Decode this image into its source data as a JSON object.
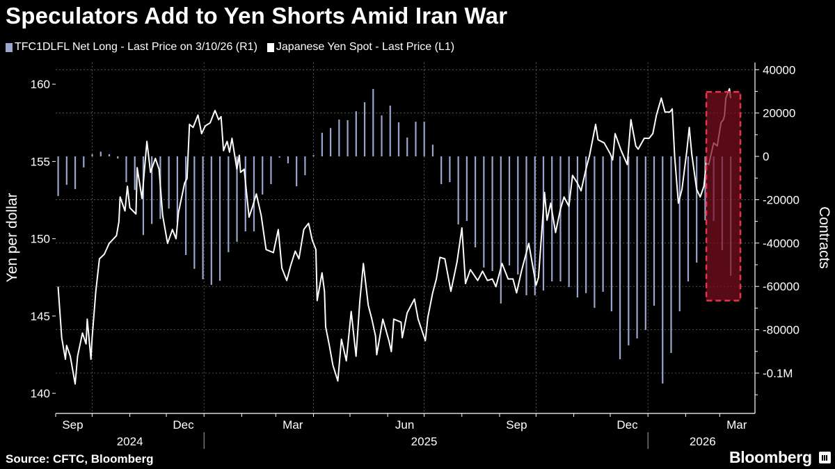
{
  "title": "Speculators Add to Yen Shorts Amid Iran War",
  "source": "Source: CFTC, Bloomberg",
  "logo": "Bloomberg",
  "colors": {
    "background": "#000000",
    "bars": "#9aa6cc",
    "line": "#ffffff",
    "highlight_fill": "#7a0f1e",
    "highlight_border": "#e8334a",
    "grid": "#666666"
  },
  "chart_data": {
    "type": "bar+line",
    "title": "Speculators Add to Yen Shorts Amid Iran War",
    "legend_position": "top-left",
    "grid": true,
    "xlim": [
      "2024-09-01",
      "2026-03-30"
    ],
    "x_tick_labels": [
      {
        "date": "2024-09-15",
        "label": "Sep"
      },
      {
        "date": "2024-12-15",
        "label": "Dec"
      },
      {
        "date": "2025-03-15",
        "label": "Mar"
      },
      {
        "date": "2025-06-15",
        "label": "Jun"
      },
      {
        "date": "2025-09-15",
        "label": "Sep"
      },
      {
        "date": "2025-12-15",
        "label": "Dec"
      },
      {
        "date": "2026-03-15",
        "label": "Mar"
      }
    ],
    "x_year_labels": [
      {
        "date": "2024-11-01",
        "label": "2024"
      },
      {
        "date": "2025-07-01",
        "label": "2025"
      },
      {
        "date": "2026-02-15",
        "label": "2026"
      }
    ],
    "y_left": {
      "label": "Yen per dollar",
      "ylim": [
        138.7,
        161.4
      ],
      "ticks": [
        160,
        155,
        150,
        145,
        140
      ],
      "tick_labels": [
        "160",
        "155",
        "150",
        "145",
        "140"
      ]
    },
    "y_right": {
      "label": "Contracts",
      "ylim": [
        -118600,
        43300
      ],
      "ticks": [
        40000,
        20000,
        0,
        -20000,
        -40000,
        -60000,
        -80000,
        -100000
      ],
      "tick_labels": [
        "40000",
        "20000",
        "0",
        "-20000",
        "-40000",
        "-60000",
        "-80000",
        "-0.1M"
      ]
    },
    "highlight": {
      "x": [
        "2026-02-18",
        "2026-03-18"
      ],
      "y_left": [
        146.0,
        159.5
      ]
    },
    "series": [
      {
        "name": "TFC1DLFL Net Long - Last Price on 3/10/26 (R1)",
        "type": "bar",
        "axis": "right",
        "dates": [
          "2024-09-03",
          "2024-09-10",
          "2024-09-17",
          "2024-09-24",
          "2024-10-01",
          "2024-10-08",
          "2024-10-15",
          "2024-10-22",
          "2024-10-29",
          "2024-11-05",
          "2024-11-12",
          "2024-11-19",
          "2024-11-26",
          "2024-12-03",
          "2024-12-10",
          "2024-12-17",
          "2024-12-24",
          "2024-12-31",
          "2025-01-07",
          "2025-01-14",
          "2025-01-21",
          "2025-01-28",
          "2025-02-04",
          "2025-02-11",
          "2025-02-18",
          "2025-02-25",
          "2025-03-04",
          "2025-03-11",
          "2025-03-18",
          "2025-03-25",
          "2025-04-01",
          "2025-04-08",
          "2025-04-15",
          "2025-04-22",
          "2025-04-29",
          "2025-05-06",
          "2025-05-13",
          "2025-05-20",
          "2025-05-27",
          "2025-06-03",
          "2025-06-10",
          "2025-06-17",
          "2025-06-24",
          "2025-07-01",
          "2025-07-08",
          "2025-07-15",
          "2025-07-22",
          "2025-07-29",
          "2025-08-05",
          "2025-08-12",
          "2025-08-19",
          "2025-08-26",
          "2025-09-02",
          "2025-09-09",
          "2025-09-16",
          "2025-09-23",
          "2025-09-30",
          "2025-10-07",
          "2025-10-14",
          "2025-10-21",
          "2025-10-28",
          "2025-11-04",
          "2025-11-11",
          "2025-11-18",
          "2025-11-25",
          "2025-12-02",
          "2025-12-09",
          "2025-12-16",
          "2025-12-23",
          "2025-12-30",
          "2026-01-06",
          "2026-01-13",
          "2026-01-20",
          "2026-01-27",
          "2026-02-03",
          "2026-02-10",
          "2026-02-17",
          "2026-02-24",
          "2026-03-03",
          "2026-03-10"
        ],
        "values": [
          -18300,
          -13100,
          -15100,
          -5100,
          1000,
          2200,
          1000,
          -1000,
          -11900,
          -15500,
          -36300,
          -31200,
          -28900,
          -24100,
          -30600,
          -45500,
          -51900,
          -56700,
          -59300,
          -57400,
          -44200,
          -39400,
          -34600,
          -34600,
          -17600,
          -12800,
          -600,
          -3200,
          -13800,
          -8700,
          600,
          10900,
          13100,
          17000,
          16700,
          20800,
          25000,
          31100,
          18900,
          23400,
          15700,
          8700,
          16000,
          16000,
          5400,
          -12800,
          -11900,
          -31400,
          -29800,
          -42000,
          -51300,
          -52900,
          -67900,
          -50300,
          -54500,
          -64100,
          -64100,
          -61900,
          -57700,
          -57700,
          -60300,
          -65100,
          -63100,
          -69900,
          -62500,
          -71500,
          -93600,
          -87200,
          -84000,
          -80100,
          -68900,
          -104800,
          -90700,
          -71500,
          -57700,
          -49000,
          -29500,
          -29800,
          -43300,
          -55100
        ]
      },
      {
        "name": "Japanese Yen Spot - Last Price (L1)",
        "type": "line",
        "axis": "left",
        "points": [
          [
            "2024-09-03",
            146.9
          ],
          [
            "2024-09-06",
            143.6
          ],
          [
            "2024-09-09",
            142.2
          ],
          [
            "2024-09-10",
            143.1
          ],
          [
            "2024-09-13",
            142.4
          ],
          [
            "2024-09-17",
            140.6
          ],
          [
            "2024-09-19",
            142.4
          ],
          [
            "2024-09-23",
            143.9
          ],
          [
            "2024-09-26",
            143.2
          ],
          [
            "2024-09-27",
            144.8
          ],
          [
            "2024-09-30",
            142.2
          ],
          [
            "2024-10-01",
            143.6
          ],
          [
            "2024-10-04",
            146.6
          ],
          [
            "2024-10-07",
            148.7
          ],
          [
            "2024-10-11",
            149.0
          ],
          [
            "2024-10-15",
            149.7
          ],
          [
            "2024-10-21",
            150.2
          ],
          [
            "2024-10-23",
            151.1
          ],
          [
            "2024-10-24",
            152.7
          ],
          [
            "2024-10-28",
            151.8
          ],
          [
            "2024-10-30",
            153.4
          ],
          [
            "2024-11-01",
            152.0
          ],
          [
            "2024-11-06",
            151.6
          ],
          [
            "2024-11-07",
            154.6
          ],
          [
            "2024-11-11",
            152.6
          ],
          [
            "2024-11-15",
            156.3
          ],
          [
            "2024-11-18",
            154.3
          ],
          [
            "2024-11-22",
            155.2
          ],
          [
            "2024-11-25",
            154.5
          ],
          [
            "2024-11-28",
            151.5
          ],
          [
            "2024-12-02",
            149.7
          ],
          [
            "2024-12-06",
            150.6
          ],
          [
            "2024-12-09",
            150.0
          ],
          [
            "2024-12-11",
            151.7
          ],
          [
            "2024-12-16",
            153.6
          ],
          [
            "2024-12-18",
            153.9
          ],
          [
            "2024-12-20",
            157.4
          ],
          [
            "2024-12-23",
            157.2
          ],
          [
            "2024-12-27",
            158.0
          ],
          [
            "2024-12-30",
            156.8
          ],
          [
            "2025-01-02",
            157.3
          ],
          [
            "2025-01-06",
            157.5
          ],
          [
            "2025-01-10",
            158.3
          ],
          [
            "2025-01-13",
            157.7
          ],
          [
            "2025-01-15",
            157.9
          ],
          [
            "2025-01-17",
            155.7
          ],
          [
            "2025-01-20",
            156.3
          ],
          [
            "2025-01-22",
            155.6
          ],
          [
            "2025-01-24",
            156.5
          ],
          [
            "2025-01-28",
            154.5
          ],
          [
            "2025-01-30",
            155.4
          ],
          [
            "2025-01-31",
            154.3
          ],
          [
            "2025-02-03",
            154.5
          ],
          [
            "2025-02-07",
            151.4
          ],
          [
            "2025-02-10",
            152.1
          ],
          [
            "2025-02-13",
            152.9
          ],
          [
            "2025-02-17",
            151.5
          ],
          [
            "2025-02-21",
            149.3
          ],
          [
            "2025-02-27",
            149.1
          ],
          [
            "2025-03-03",
            150.6
          ],
          [
            "2025-03-06",
            148.1
          ],
          [
            "2025-03-10",
            147.3
          ],
          [
            "2025-03-13",
            148.2
          ],
          [
            "2025-03-17",
            149.2
          ],
          [
            "2025-03-20",
            148.7
          ],
          [
            "2025-03-24",
            150.6
          ],
          [
            "2025-03-28",
            151.0
          ],
          [
            "2025-03-31",
            149.9
          ],
          [
            "2025-04-03",
            149.3
          ],
          [
            "2025-04-04",
            146.0
          ],
          [
            "2025-04-08",
            147.8
          ],
          [
            "2025-04-10",
            146.6
          ],
          [
            "2025-04-11",
            144.3
          ],
          [
            "2025-04-14",
            143.1
          ],
          [
            "2025-04-17",
            141.8
          ],
          [
            "2025-04-21",
            140.8
          ],
          [
            "2025-04-24",
            143.5
          ],
          [
            "2025-04-28",
            142.1
          ],
          [
            "2025-05-02",
            145.3
          ],
          [
            "2025-05-06",
            142.4
          ],
          [
            "2025-05-09",
            145.9
          ],
          [
            "2025-05-12",
            148.4
          ],
          [
            "2025-05-16",
            145.7
          ],
          [
            "2025-05-19",
            144.8
          ],
          [
            "2025-05-22",
            143.7
          ],
          [
            "2025-05-23",
            142.5
          ],
          [
            "2025-05-28",
            144.8
          ],
          [
            "2025-06-02",
            143.4
          ],
          [
            "2025-06-04",
            142.7
          ],
          [
            "2025-06-06",
            144.8
          ],
          [
            "2025-06-12",
            144.6
          ],
          [
            "2025-06-13",
            143.6
          ],
          [
            "2025-06-17",
            145.2
          ],
          [
            "2025-06-23",
            146.1
          ],
          [
            "2025-06-26",
            144.8
          ],
          [
            "2025-07-02",
            143.4
          ],
          [
            "2025-07-04",
            144.9
          ],
          [
            "2025-07-08",
            146.5
          ],
          [
            "2025-07-11",
            147.4
          ],
          [
            "2025-07-14",
            148.8
          ],
          [
            "2025-07-18",
            148.7
          ],
          [
            "2025-07-23",
            146.6
          ],
          [
            "2025-07-28",
            148.5
          ],
          [
            "2025-08-01",
            150.7
          ],
          [
            "2025-08-04",
            147.1
          ],
          [
            "2025-08-08",
            148.0
          ],
          [
            "2025-08-14",
            147.3
          ],
          [
            "2025-08-18",
            147.9
          ],
          [
            "2025-08-22",
            147.3
          ],
          [
            "2025-08-26",
            147.4
          ],
          [
            "2025-08-29",
            146.9
          ],
          [
            "2025-09-03",
            148.4
          ],
          [
            "2025-09-08",
            147.4
          ],
          [
            "2025-09-12",
            147.4
          ],
          [
            "2025-09-15",
            146.5
          ],
          [
            "2025-09-19",
            147.9
          ],
          [
            "2025-09-25",
            149.7
          ],
          [
            "2025-10-01",
            147.0
          ],
          [
            "2025-10-03",
            147.5
          ],
          [
            "2025-10-08",
            153.0
          ],
          [
            "2025-10-10",
            151.2
          ],
          [
            "2025-10-13",
            152.3
          ],
          [
            "2025-10-17",
            150.4
          ],
          [
            "2025-10-21",
            151.9
          ],
          [
            "2025-10-24",
            152.7
          ],
          [
            "2025-10-28",
            152.1
          ],
          [
            "2025-10-31",
            154.1
          ],
          [
            "2025-11-04",
            153.6
          ],
          [
            "2025-11-07",
            153.1
          ],
          [
            "2025-11-11",
            154.5
          ],
          [
            "2025-11-14",
            155.4
          ],
          [
            "2025-11-19",
            157.4
          ],
          [
            "2025-11-21",
            156.4
          ],
          [
            "2025-11-26",
            156.2
          ],
          [
            "2025-12-01",
            155.5
          ],
          [
            "2025-12-03",
            155.1
          ],
          [
            "2025-12-05",
            156.8
          ],
          [
            "2025-12-10",
            155.7
          ],
          [
            "2025-12-15",
            154.8
          ],
          [
            "2025-12-18",
            157.7
          ],
          [
            "2025-12-22",
            156.0
          ],
          [
            "2025-12-24",
            155.8
          ],
          [
            "2025-12-29",
            156.5
          ],
          [
            "2026-01-02",
            156.5
          ],
          [
            "2026-01-05",
            156.8
          ],
          [
            "2026-01-08",
            158.0
          ],
          [
            "2026-01-12",
            159.1
          ],
          [
            "2026-01-15",
            158.2
          ],
          [
            "2026-01-19",
            158.2
          ],
          [
            "2026-01-21",
            158.4
          ],
          [
            "2026-01-23",
            155.3
          ],
          [
            "2026-01-26",
            152.3
          ],
          [
            "2026-01-29",
            153.2
          ],
          [
            "2026-02-02",
            155.7
          ],
          [
            "2026-02-04",
            157.2
          ],
          [
            "2026-02-06",
            155.5
          ],
          [
            "2026-02-10",
            153.2
          ],
          [
            "2026-02-13",
            152.7
          ],
          [
            "2026-02-16",
            153.4
          ],
          [
            "2026-02-18",
            154.9
          ],
          [
            "2026-02-20",
            154.8
          ],
          [
            "2026-02-24",
            156.2
          ],
          [
            "2026-02-27",
            156.0
          ],
          [
            "2026-03-02",
            157.5
          ],
          [
            "2026-03-04",
            157.7
          ],
          [
            "2026-03-05",
            158.0
          ],
          [
            "2026-03-06",
            159.1
          ],
          [
            "2026-03-09",
            159.7
          ],
          [
            "2026-03-10",
            159.1
          ]
        ]
      }
    ]
  }
}
